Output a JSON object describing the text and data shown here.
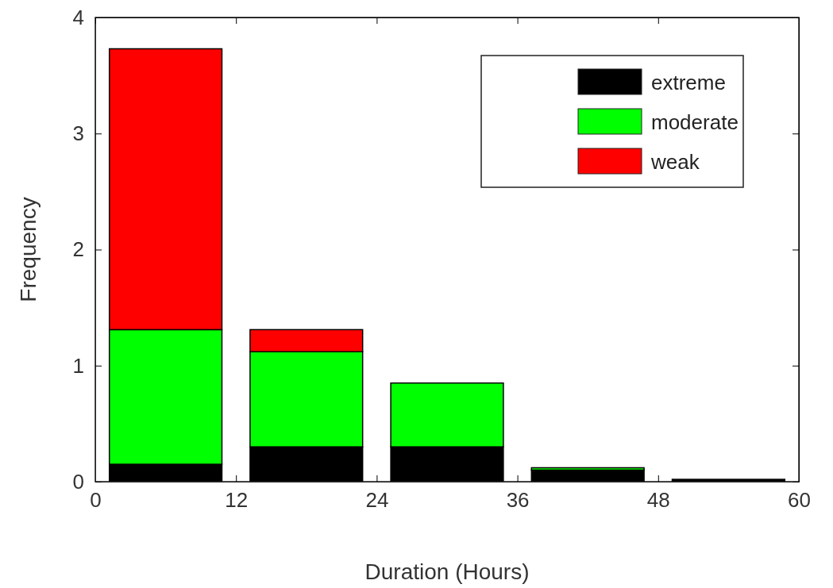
{
  "chart_data": {
    "type": "bar",
    "xlabel": "Duration (Hours)",
    "ylabel": "Frequency",
    "x": [
      6,
      18,
      30,
      42,
      54
    ],
    "stacked": true,
    "series": [
      {
        "name": "extreme",
        "color": "#000000",
        "values": [
          0.15,
          0.3,
          0.3,
          0.1,
          0.02
        ]
      },
      {
        "name": "moderate",
        "color": "#00ff00",
        "values": [
          1.16,
          0.82,
          0.55,
          0.02,
          0
        ]
      },
      {
        "name": "weak",
        "color": "#ff0000",
        "values": [
          2.42,
          0.19,
          0,
          0,
          0
        ]
      }
    ],
    "xlim": [
      0,
      60
    ],
    "xticks": [
      0,
      12,
      24,
      36,
      48,
      60
    ],
    "ylim": [
      0,
      4
    ],
    "yticks": [
      0,
      1,
      2,
      3,
      4
    ],
    "legend": "top right"
  }
}
